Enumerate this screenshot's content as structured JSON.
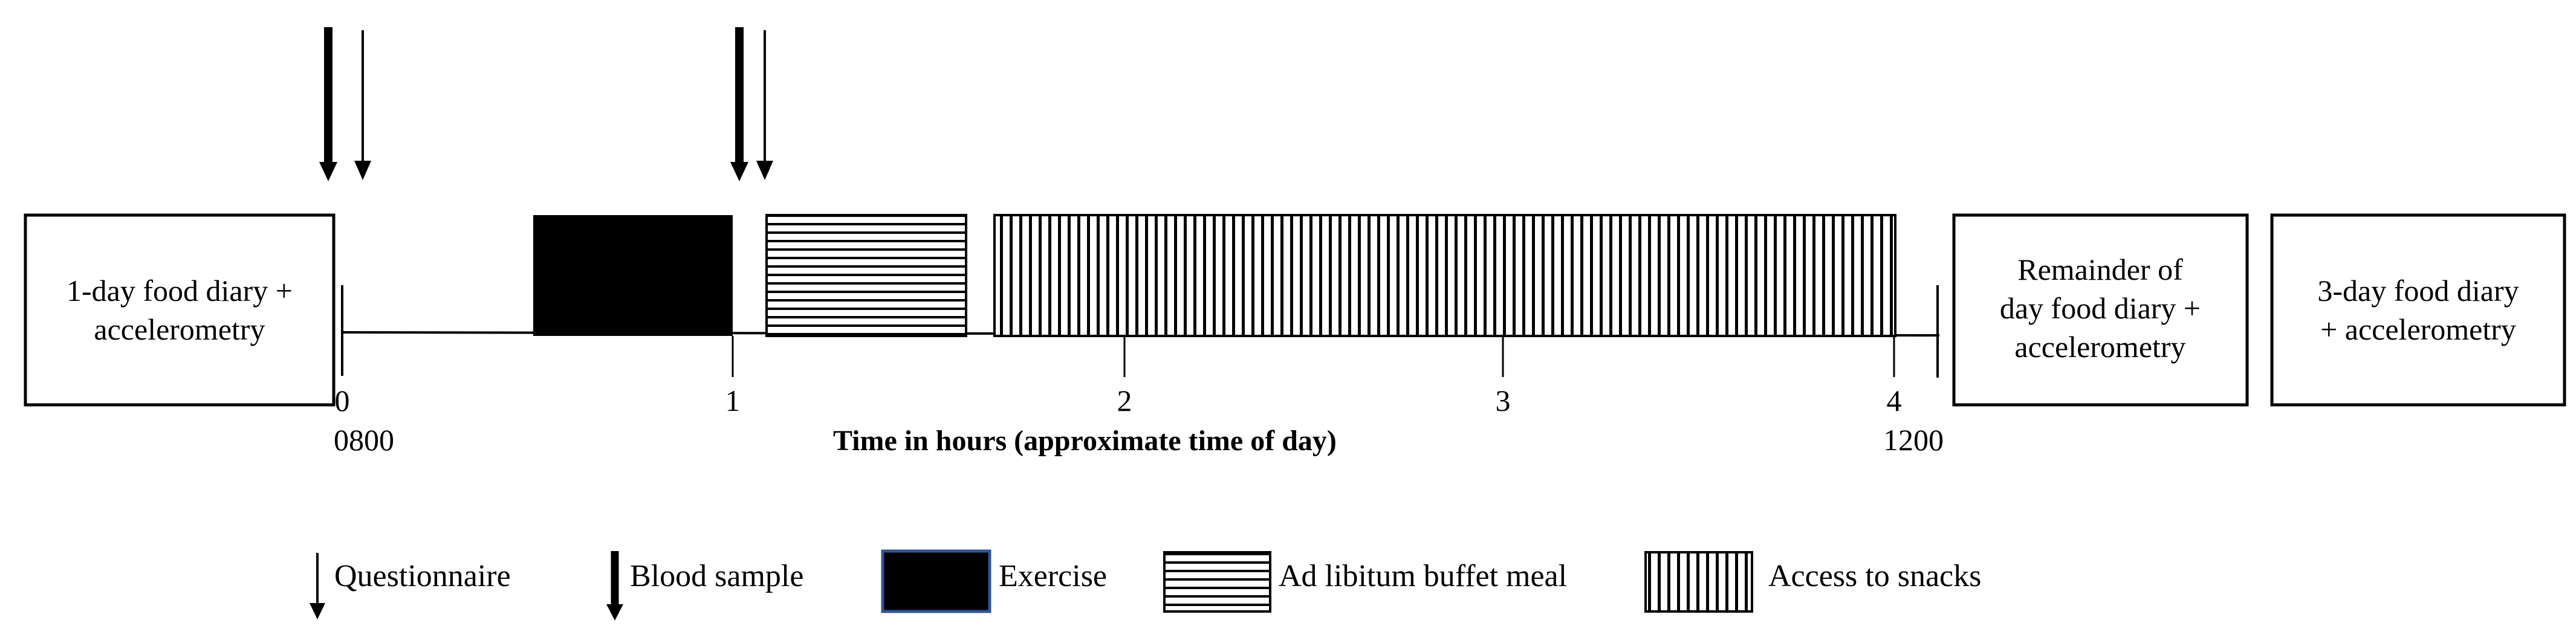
{
  "left_box": {
    "lines": [
      "1-day food diary +",
      "accelerometry"
    ]
  },
  "middle_right_box": {
    "lines": [
      "Remainder of",
      "day food diary  +",
      "accelerometry"
    ]
  },
  "right_box": {
    "lines": [
      "3-day food diary",
      "+ accelerometry"
    ]
  },
  "axis": {
    "ticks": [
      "0",
      "1",
      "2",
      "3",
      "4"
    ],
    "start_time": "0800",
    "end_time": "1200",
    "title": "Time in hours (approximate time of day)"
  },
  "timeline": [
    {
      "activity": "Exercise",
      "start_h": 0.5,
      "end_h": 1.0,
      "pattern": "solid"
    },
    {
      "activity": "Ad libitum buffet meal",
      "start_h": 1.08,
      "end_h": 1.58,
      "pattern": "horizontal-lines"
    },
    {
      "activity": "Access to snacks",
      "start_h": 1.66,
      "end_h": 3.95,
      "pattern": "vertical-lines"
    }
  ],
  "measurements": [
    {
      "type": "Blood sample",
      "time_h": -0.03
    },
    {
      "type": "Questionnaire",
      "time_h": 0.06
    },
    {
      "type": "Blood sample",
      "time_h": 1.01
    },
    {
      "type": "Questionnaire",
      "time_h": 1.08
    }
  ],
  "legend": {
    "questionnaire": "Questionnaire",
    "blood_sample": "Blood sample",
    "exercise": "Exercise",
    "buffet": "Ad libitum buffet meal",
    "snacks": "Access to snacks"
  },
  "colors": {
    "exercise_border": "#2f5597",
    "ink": "#000000"
  }
}
